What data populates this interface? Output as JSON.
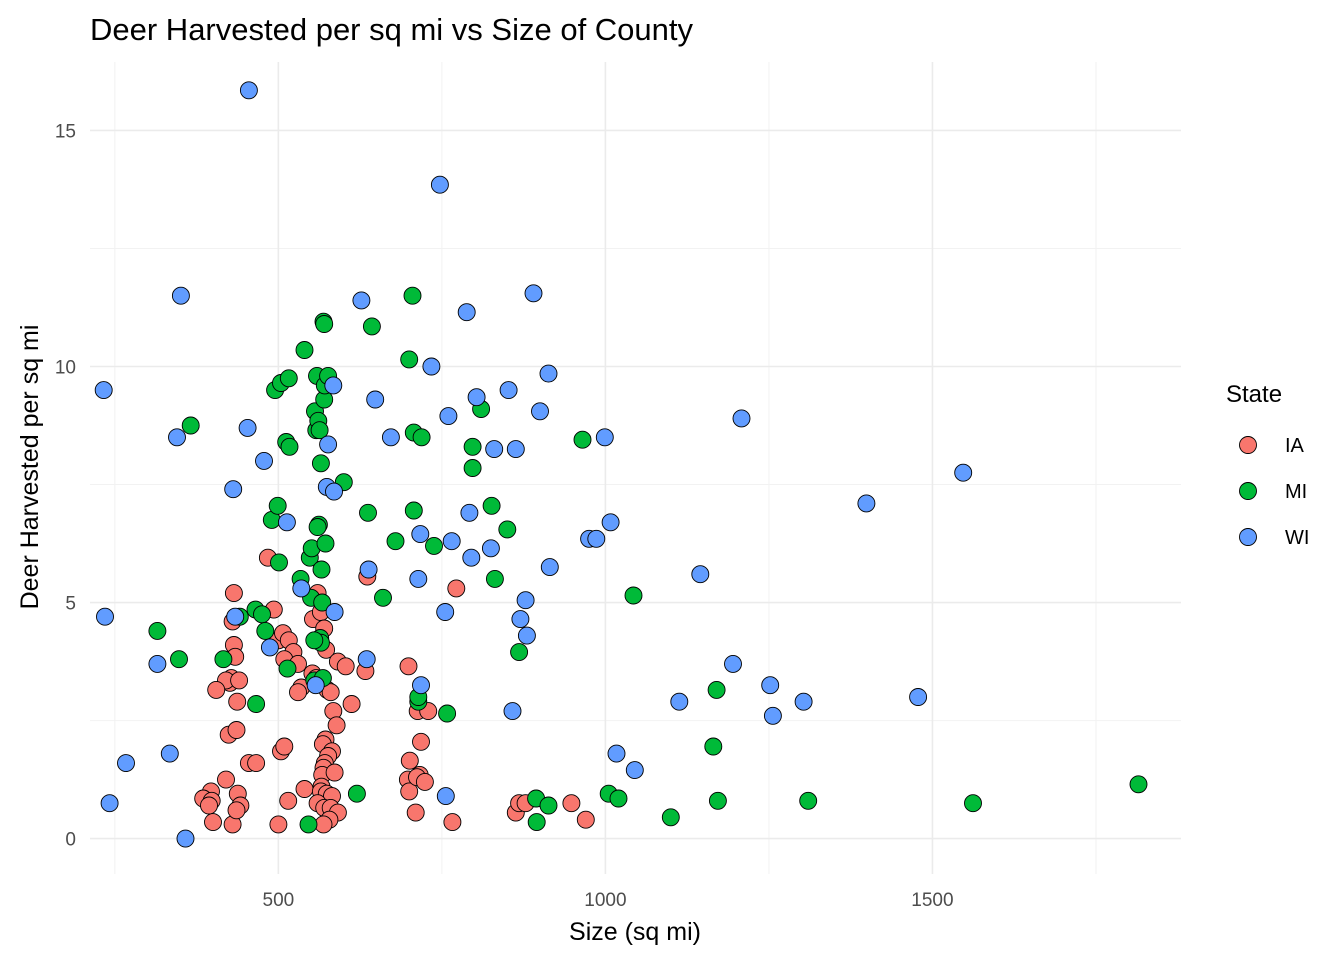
{
  "chart_data": {
    "type": "scatter",
    "title": "Deer Harvested per sq mi vs Size of County",
    "xlabel": "Size (sq mi)",
    "ylabel": "Deer Harvested per sq mi",
    "xlim": [
      212,
      1880
    ],
    "ylim": [
      -0.75,
      16.45
    ],
    "x_ticks": [
      500,
      1000,
      1500
    ],
    "x_tick_labels": [
      "500",
      "1000",
      "1500"
    ],
    "y_ticks": [
      0,
      5,
      10,
      15
    ],
    "y_tick_labels": [
      "0",
      "5",
      "10",
      "15"
    ],
    "grid": true,
    "legend": {
      "title": "State",
      "placement": "right",
      "entries": [
        {
          "name": "IA",
          "color": "#F8766D"
        },
        {
          "name": "MI",
          "color": "#00BA38"
        },
        {
          "name": "WI",
          "color": "#619CFF"
        }
      ]
    },
    "series": [
      {
        "name": "IA",
        "color": "#F8766D",
        "points": [
          [
            432,
            5.2
          ],
          [
            430,
            4.6
          ],
          [
            432,
            4.1
          ],
          [
            434,
            3.85
          ],
          [
            428,
            3.4
          ],
          [
            426,
            3.3
          ],
          [
            420,
            3.35
          ],
          [
            405,
            3.15
          ],
          [
            440,
            3.35
          ],
          [
            437,
            2.9
          ],
          [
            424,
            2.2
          ],
          [
            436,
            2.3
          ],
          [
            455,
            1.6
          ],
          [
            466,
            1.6
          ],
          [
            420,
            1.25
          ],
          [
            397,
            1.0
          ],
          [
            385,
            0.85
          ],
          [
            398,
            0.8
          ],
          [
            394,
            0.7
          ],
          [
            400,
            0.35
          ],
          [
            430,
            0.3
          ],
          [
            438,
            0.95
          ],
          [
            442,
            0.7
          ],
          [
            436,
            0.6
          ],
          [
            484,
            5.95
          ],
          [
            493,
            4.85
          ],
          [
            500,
            4.2
          ],
          [
            507,
            4.35
          ],
          [
            516,
            4.2
          ],
          [
            523,
            3.95
          ],
          [
            509,
            3.8
          ],
          [
            530,
            3.7
          ],
          [
            535,
            3.2
          ],
          [
            530,
            3.1
          ],
          [
            504,
            1.85
          ],
          [
            509,
            1.95
          ],
          [
            515,
            0.8
          ],
          [
            500,
            0.3
          ],
          [
            540,
            1.05
          ],
          [
            560,
            5.2
          ],
          [
            553,
            4.65
          ],
          [
            565,
            4.8
          ],
          [
            570,
            4.45
          ],
          [
            563,
            4.2
          ],
          [
            573,
            4.0
          ],
          [
            552,
            3.5
          ],
          [
            558,
            3.4
          ],
          [
            566,
            3.3
          ],
          [
            575,
            3.15
          ],
          [
            580,
            3.1
          ],
          [
            584,
            2.7
          ],
          [
            589,
            2.4
          ],
          [
            572,
            2.1
          ],
          [
            568,
            2.0
          ],
          [
            582,
            1.85
          ],
          [
            576,
            1.75
          ],
          [
            571,
            1.6
          ],
          [
            569,
            1.5
          ],
          [
            567,
            1.35
          ],
          [
            586,
            1.4
          ],
          [
            566,
            1.1
          ],
          [
            565,
            1.0
          ],
          [
            574,
            0.95
          ],
          [
            582,
            0.9
          ],
          [
            560,
            0.75
          ],
          [
            570,
            0.65
          ],
          [
            580,
            0.65
          ],
          [
            591,
            0.55
          ],
          [
            578,
            0.4
          ],
          [
            569,
            0.3
          ],
          [
            591,
            3.75
          ],
          [
            603,
            3.65
          ],
          [
            612,
            2.85
          ],
          [
            633,
            3.55
          ],
          [
            636,
            5.55
          ],
          [
            699,
            3.65
          ],
          [
            701,
            1.65
          ],
          [
            698,
            1.25
          ],
          [
            700,
            1.0
          ],
          [
            716,
            1.35
          ],
          [
            712,
            1.3
          ],
          [
            724,
            1.2
          ],
          [
            713,
            2.7
          ],
          [
            729,
            2.7
          ],
          [
            718,
            2.05
          ],
          [
            710,
            0.55
          ],
          [
            772,
            5.3
          ],
          [
            766,
            0.35
          ],
          [
            863,
            0.55
          ],
          [
            868,
            0.75
          ],
          [
            878,
            0.75
          ],
          [
            948,
            0.75
          ],
          [
            970,
            0.4
          ]
        ]
      },
      {
        "name": "MI",
        "color": "#00BA38",
        "points": [
          [
            315,
            4.4
          ],
          [
            348,
            3.8
          ],
          [
            366,
            8.75
          ],
          [
            416,
            3.8
          ],
          [
            441,
            4.7
          ],
          [
            465,
            4.85
          ],
          [
            475,
            4.75
          ],
          [
            480,
            4.4
          ],
          [
            466,
            2.85
          ],
          [
            490,
            6.75
          ],
          [
            495,
            9.5
          ],
          [
            499,
            7.05
          ],
          [
            501,
            5.85
          ],
          [
            504,
            9.65
          ],
          [
            512,
            8.4
          ],
          [
            516,
            9.75
          ],
          [
            517,
            8.3
          ],
          [
            514,
            3.6
          ],
          [
            534,
            5.5
          ],
          [
            540,
            10.35
          ],
          [
            548,
            5.95
          ],
          [
            550,
            5.1
          ],
          [
            551,
            6.15
          ],
          [
            555,
            3.35
          ],
          [
            556,
            9.05
          ],
          [
            558,
            8.65
          ],
          [
            559,
            9.8
          ],
          [
            561,
            8.85
          ],
          [
            563,
            8.65
          ],
          [
            565,
            7.95
          ],
          [
            562,
            6.65
          ],
          [
            560,
            6.6
          ],
          [
            566,
            5.7
          ],
          [
            567,
            5.0
          ],
          [
            569,
            10.95
          ],
          [
            570,
            10.9
          ],
          [
            570,
            9.3
          ],
          [
            571,
            9.6
          ],
          [
            572,
            6.25
          ],
          [
            576,
            9.8
          ],
          [
            564,
            4.25
          ],
          [
            565,
            4.15
          ],
          [
            568,
            3.4
          ],
          [
            555,
            4.2
          ],
          [
            546,
            0.3
          ],
          [
            600,
            7.55
          ],
          [
            620,
            0.95
          ],
          [
            637,
            6.9
          ],
          [
            643,
            10.85
          ],
          [
            660,
            5.1
          ],
          [
            679,
            6.3
          ],
          [
            700,
            10.15
          ],
          [
            705,
            11.5
          ],
          [
            707,
            6.95
          ],
          [
            707,
            8.6
          ],
          [
            719,
            8.5
          ],
          [
            714,
            2.9
          ],
          [
            714,
            3.0
          ],
          [
            738,
            6.2
          ],
          [
            758,
            2.65
          ],
          [
            797,
            8.3
          ],
          [
            797,
            7.85
          ],
          [
            810,
            9.1
          ],
          [
            826,
            7.05
          ],
          [
            831,
            5.5
          ],
          [
            850,
            6.55
          ],
          [
            868,
            3.95
          ],
          [
            894,
            0.85
          ],
          [
            895,
            0.35
          ],
          [
            913,
            0.7
          ],
          [
            965,
            8.45
          ],
          [
            1005,
            0.95
          ],
          [
            1020,
            0.85
          ],
          [
            1043,
            5.15
          ],
          [
            1100,
            0.45
          ],
          [
            1165,
            1.95
          ],
          [
            1170,
            3.15
          ],
          [
            1172,
            0.8
          ],
          [
            1310,
            0.8
          ],
          [
            1562,
            0.75
          ],
          [
            1815,
            1.15
          ]
        ]
      },
      {
        "name": "WI",
        "color": "#619CFF",
        "points": [
          [
            233,
            9.5
          ],
          [
            235,
            4.7
          ],
          [
            242,
            0.75
          ],
          [
            267,
            1.6
          ],
          [
            315,
            3.7
          ],
          [
            334,
            1.8
          ],
          [
            345,
            8.5
          ],
          [
            351,
            11.5
          ],
          [
            358,
            0.0
          ],
          [
            431,
            7.4
          ],
          [
            434,
            4.7
          ],
          [
            453,
            8.7
          ],
          [
            455,
            15.85
          ],
          [
            478,
            8.0
          ],
          [
            487,
            4.05
          ],
          [
            513,
            6.7
          ],
          [
            535,
            5.3
          ],
          [
            557,
            3.25
          ],
          [
            574,
            7.45
          ],
          [
            576,
            8.35
          ],
          [
            584,
            9.6
          ],
          [
            585,
            7.35
          ],
          [
            586,
            4.8
          ],
          [
            627,
            11.4
          ],
          [
            635,
            3.8
          ],
          [
            638,
            5.7
          ],
          [
            648,
            9.3
          ],
          [
            672,
            8.5
          ],
          [
            714,
            5.5
          ],
          [
            717,
            6.45
          ],
          [
            718,
            3.25
          ],
          [
            734,
            10.0
          ],
          [
            747,
            13.85
          ],
          [
            755,
            4.8
          ],
          [
            760,
            8.95
          ],
          [
            765,
            6.3
          ],
          [
            788,
            11.15
          ],
          [
            792,
            6.9
          ],
          [
            795,
            5.95
          ],
          [
            803,
            9.35
          ],
          [
            825,
            6.15
          ],
          [
            830,
            8.25
          ],
          [
            852,
            9.5
          ],
          [
            858,
            2.7
          ],
          [
            863,
            8.25
          ],
          [
            870,
            4.65
          ],
          [
            878,
            5.05
          ],
          [
            880,
            4.3
          ],
          [
            890,
            11.55
          ],
          [
            900,
            9.05
          ],
          [
            913,
            9.85
          ],
          [
            915,
            5.75
          ],
          [
            975,
            6.35
          ],
          [
            986,
            6.35
          ],
          [
            999,
            8.5
          ],
          [
            1008,
            6.7
          ],
          [
            1017,
            1.8
          ],
          [
            1045,
            1.45
          ],
          [
            1113,
            2.9
          ],
          [
            1145,
            5.6
          ],
          [
            1195,
            3.7
          ],
          [
            1208,
            8.9
          ],
          [
            1252,
            3.25
          ],
          [
            1256,
            2.6
          ],
          [
            1303,
            2.9
          ],
          [
            1399,
            7.1
          ],
          [
            1478,
            3.0
          ],
          [
            1547,
            7.75
          ],
          [
            756,
            0.9
          ]
        ]
      }
    ]
  }
}
